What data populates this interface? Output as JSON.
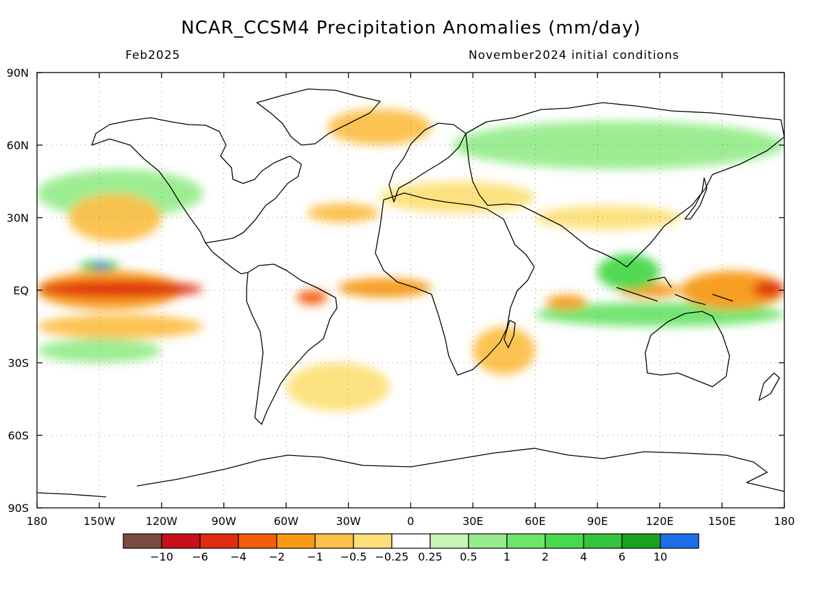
{
  "header": {
    "title": "NCAR_CCSM4 Precipitation Anomalies (mm/day)",
    "valid_month": "Feb2025",
    "init_conditions": "November2024 initial conditions"
  },
  "axes": {
    "lat_ticks": [
      "90N",
      "60N",
      "30N",
      "EQ",
      "30S",
      "60S",
      "90S"
    ],
    "lon_ticks": [
      "180",
      "150W",
      "120W",
      "90W",
      "60W",
      "30W",
      "0",
      "30E",
      "60E",
      "90E",
      "120E",
      "150E",
      "180"
    ]
  },
  "colorbar": {
    "labels": [
      "-10",
      "-6",
      "-4",
      "-2",
      "-1",
      "-0.5",
      "-0.25",
      "0.25",
      "0.5",
      "1",
      "2",
      "4",
      "6",
      "10"
    ],
    "colors": [
      "#7a4b3f",
      "#c8101a",
      "#e02c10",
      "#f25e0a",
      "#f79a14",
      "#fcc04a",
      "#fde07a",
      "#ffffff",
      "#c8f5b8",
      "#97ec8c",
      "#6de46a",
      "#4ad84c",
      "#34c33e",
      "#18a31e",
      "#1e6ee8"
    ]
  },
  "chart_data": {
    "type": "heatmap",
    "title": "NCAR_CCSM4 Precipitation Anomalies (mm/day)",
    "subtitle_left": "Feb2025",
    "subtitle_right": "November2024 initial conditions",
    "xlim": [
      -180,
      180
    ],
    "ylim": [
      -90,
      90
    ],
    "units": "mm/day",
    "levels": [
      -10,
      -6,
      -4,
      -2,
      -1,
      -0.5,
      -0.25,
      0.25,
      0.5,
      1,
      2,
      4,
      6,
      10
    ],
    "anomaly_regions": [
      {
        "lon": [
          -180,
          -100
        ],
        "lat": [
          -3,
          4
        ],
        "value": -6
      },
      {
        "lon": [
          -180,
          -110
        ],
        "lat": [
          -8,
          8
        ],
        "value": -2
      },
      {
        "lon": [
          165,
          180
        ],
        "lat": [
          -3,
          4
        ],
        "value": -6
      },
      {
        "lon": [
          130,
          180
        ],
        "lat": [
          -8,
          8
        ],
        "value": -2
      },
      {
        "lon": [
          -160,
          -140
        ],
        "lat": [
          8,
          12
        ],
        "value": 4
      },
      {
        "lon": [
          -153,
          -145
        ],
        "lat": [
          9,
          11
        ],
        "value": 10
      },
      {
        "lon": [
          -35,
          10
        ],
        "lat": [
          -3,
          5
        ],
        "value": -2
      },
      {
        "lon": [
          -55,
          -40
        ],
        "lat": [
          -6,
          0
        ],
        "value": -4
      },
      {
        "lon": [
          65,
          85
        ],
        "lat": [
          -8,
          -2
        ],
        "value": -2
      },
      {
        "lon": [
          100,
          130
        ],
        "lat": [
          -3,
          3
        ],
        "value": -2
      },
      {
        "lon": [
          60,
          180
        ],
        "lat": [
          -15,
          -5
        ],
        "value": 1
      },
      {
        "lon": [
          90,
          120
        ],
        "lat": [
          0,
          15
        ],
        "value": 2
      },
      {
        "lon": [
          -165,
          -120
        ],
        "lat": [
          20,
          40
        ],
        "value": -1
      },
      {
        "lon": [
          -50,
          -15
        ],
        "lat": [
          28,
          36
        ],
        "value": -1
      },
      {
        "lon": [
          -15,
          60
        ],
        "lat": [
          32,
          45
        ],
        "value": -0.5
      },
      {
        "lon": [
          60,
          130
        ],
        "lat": [
          25,
          35
        ],
        "value": -0.5
      },
      {
        "lon": [
          -40,
          10
        ],
        "lat": [
          60,
          75
        ],
        "value": -1
      },
      {
        "lon": [
          20,
          180
        ],
        "lat": [
          50,
          70
        ],
        "value": 0.5
      },
      {
        "lon": [
          -180,
          -100
        ],
        "lat": [
          30,
          50
        ],
        "value": 0.5
      },
      {
        "lon": [
          -60,
          -10
        ],
        "lat": [
          -50,
          -30
        ],
        "value": -0.5
      },
      {
        "lon": [
          30,
          60
        ],
        "lat": [
          -35,
          -15
        ],
        "value": -1
      },
      {
        "lon": [
          -180,
          180
        ],
        "lat": [
          -65,
          -55
        ],
        "value": -0.25
      },
      {
        "lon": [
          -180,
          -100
        ],
        "lat": [
          -20,
          -10
        ],
        "value": -1
      },
      {
        "lon": [
          -180,
          -120
        ],
        "lat": [
          -30,
          -20
        ],
        "value": 0.5
      }
    ]
  }
}
